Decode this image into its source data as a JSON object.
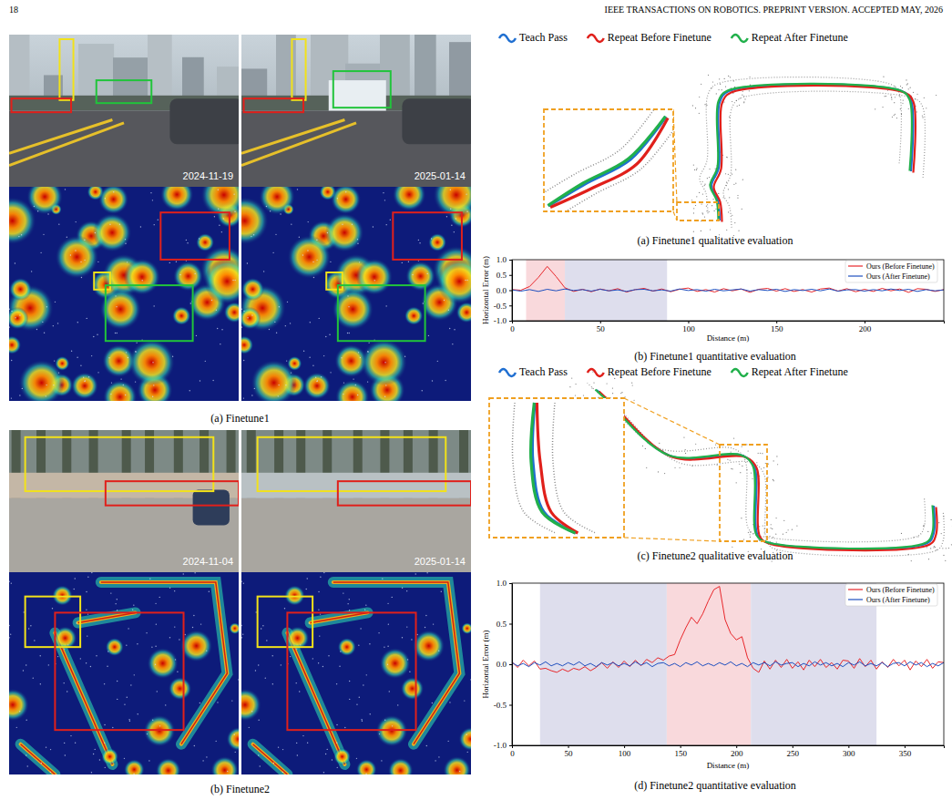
{
  "header": {
    "page_number": "18",
    "journal": "IEEE TRANSACTIONS ON ROBOTICS. PREPRINT VERSION. ACCEPTED MAY, 2026"
  },
  "scene_panels": [
    {
      "caption": "(a) Finetune1",
      "dates": [
        "2024-11-19",
        "2025-01-14"
      ]
    },
    {
      "caption": "(b) Finetune2",
      "dates": [
        "2024-11-04",
        "2025-01-14"
      ]
    }
  ],
  "map_panels": [
    {
      "caption": "(a) Finetune1 qualitative evaluation",
      "legend": [
        {
          "name": "Teach Pass",
          "color": "#1f6fd1"
        },
        {
          "name": "Repeat Before Finetune",
          "color": "#e0201b"
        },
        {
          "name": "Repeat After Finetune",
          "color": "#21b04b"
        }
      ]
    },
    {
      "caption": "(c) Finetune2 qualitative evaluation",
      "legend": [
        {
          "name": "Teach Pass",
          "color": "#1f6fd1"
        },
        {
          "name": "Repeat Before Finetune",
          "color": "#e0201b"
        },
        {
          "name": "Repeat After Finetune",
          "color": "#21b04b"
        }
      ]
    }
  ],
  "chart_data": [
    {
      "type": "line",
      "caption": "(b) Finetune1 quantitative evaluation",
      "x_label": "Distance (m)",
      "y_label": "Horizontal Error (m)",
      "x": [
        0,
        5,
        10,
        15,
        20,
        25,
        30,
        35,
        40,
        45,
        50,
        55,
        60,
        65,
        70,
        75,
        80,
        85,
        90,
        95,
        100,
        105,
        110,
        115,
        120,
        125,
        130,
        135,
        140,
        145,
        150,
        155,
        160,
        165,
        170,
        175,
        180,
        185,
        190,
        195,
        200,
        205,
        210,
        215,
        220,
        225,
        230,
        235,
        240,
        245
      ],
      "series": [
        {
          "name": "Ours (Before Finetune)",
          "color": "#e8262a",
          "values": [
            0.02,
            0.0,
            0.12,
            0.42,
            0.78,
            0.45,
            0.08,
            -0.04,
            0.03,
            -0.05,
            0.04,
            -0.02,
            0.05,
            -0.06,
            0.02,
            0.06,
            -0.03,
            0.04,
            -0.05,
            0.03,
            0.07,
            -0.04,
            0.02,
            -0.06,
            0.05,
            -0.02,
            0.04,
            -0.07,
            0.03,
            0.06,
            -0.03,
            0.05,
            -0.04,
            0.02,
            -0.06,
            0.04,
            0.07,
            -0.03,
            0.05,
            -0.05,
            0.03,
            -0.04,
            0.06,
            -0.02,
            0.04,
            -0.07,
            0.05,
            0.03,
            -0.04,
            0.02
          ]
        },
        {
          "name": "Ours (After Finetune)",
          "color": "#1f4fbf",
          "values": [
            0.01,
            -0.03,
            0.02,
            -0.04,
            0.03,
            -0.02,
            0.04,
            -0.01,
            0.02,
            -0.03,
            0.03,
            -0.02,
            0.01,
            -0.04,
            0.02,
            0.03,
            -0.02,
            0.01,
            -0.03,
            0.04,
            -0.01,
            0.02,
            -0.03,
            0.03,
            -0.02,
            0.01,
            0.04,
            -0.03,
            0.02,
            -0.01,
            0.03,
            -0.04,
            0.02,
            -0.01,
            0.03,
            -0.02,
            0.04,
            -0.03,
            0.01,
            0.02,
            -0.03,
            0.02,
            -0.02,
            0.04,
            -0.01,
            0.03,
            -0.04,
            0.02,
            -0.02,
            0.01
          ]
        }
      ],
      "regions": [
        {
          "start": 8,
          "end": 30,
          "color": "#f9d9dc"
        },
        {
          "start": 30,
          "end": 88,
          "color": "#dedeed"
        }
      ],
      "xlim": [
        0,
        245
      ],
      "xticks": [
        0,
        50,
        100,
        150,
        200
      ],
      "ylim": [
        -1,
        1
      ],
      "yticks": [
        {
          "value": -1,
          "label": "-1.0"
        },
        {
          "value": -0.5,
          "label": "-0.5"
        },
        {
          "value": 0,
          "label": "0.0"
        },
        {
          "value": 0.5,
          "label": "0.5"
        },
        {
          "value": 1,
          "label": "1.0"
        }
      ],
      "legend": "upper right",
      "grid": false
    },
    {
      "type": "line",
      "caption": "(d) Finetune2 quantitative evaluation",
      "x_label": "Distance (m)",
      "y_label": "Horizontal Error (m)",
      "x": [
        0,
        5,
        10,
        15,
        20,
        25,
        30,
        35,
        40,
        45,
        50,
        55,
        60,
        65,
        70,
        75,
        80,
        85,
        90,
        95,
        100,
        105,
        110,
        115,
        120,
        125,
        130,
        135,
        140,
        145,
        150,
        155,
        160,
        165,
        170,
        175,
        180,
        185,
        190,
        195,
        200,
        205,
        210,
        215,
        220,
        225,
        230,
        235,
        240,
        245,
        250,
        255,
        260,
        265,
        270,
        275,
        280,
        285,
        290,
        295,
        300,
        305,
        310,
        315,
        320,
        325,
        330,
        335,
        340,
        345,
        350,
        355,
        360,
        365,
        370,
        375,
        380,
        385
      ],
      "series": [
        {
          "name": "Ours (Before Finetune)",
          "color": "#e8262a",
          "values": [
            0.03,
            -0.04,
            0.05,
            -0.02,
            0.04,
            -0.06,
            -0.05,
            -0.08,
            -0.1,
            -0.06,
            -0.09,
            -0.05,
            -0.07,
            -0.03,
            -0.08,
            -0.04,
            0.02,
            -0.05,
            0.03,
            -0.04,
            0.04,
            -0.03,
            0.05,
            -0.02,
            0.06,
            0.02,
            0.08,
            0.05,
            0.1,
            0.12,
            0.3,
            0.45,
            0.58,
            0.5,
            0.62,
            0.78,
            0.92,
            0.96,
            0.55,
            0.38,
            0.3,
            0.34,
            0.08,
            -0.05,
            -0.1,
            0.04,
            -0.06,
            0.05,
            -0.04,
            0.06,
            -0.05,
            0.03,
            -0.07,
            0.05,
            -0.03,
            0.06,
            -0.04,
            0.02,
            -0.06,
            0.05,
            0.04,
            -0.05,
            0.07,
            -0.03,
            0.05,
            -0.06,
            0.03,
            -0.04,
            0.06,
            -0.02,
            0.05,
            -0.07,
            0.04,
            -0.03,
            0.06,
            -0.05,
            0.03,
            0.02
          ]
        },
        {
          "name": "Ours (After Finetune)",
          "color": "#1f4fbf",
          "values": [
            0.02,
            -0.02,
            0.01,
            -0.03,
            0.02,
            -0.01,
            0.03,
            -0.02,
            0.01,
            -0.02,
            0.02,
            -0.01,
            0.03,
            -0.02,
            0.01,
            -0.03,
            0.02,
            -0.01,
            0.02,
            -0.02,
            0.01,
            -0.02,
            0.03,
            -0.01,
            0.02,
            -0.03,
            0.01,
            0.02,
            -0.02,
            0.01,
            -0.03,
            0.02,
            -0.01,
            0.03,
            -0.02,
            0.01,
            -0.02,
            0.02,
            -0.01,
            0.03,
            -0.02,
            0.01,
            -0.03,
            0.02,
            -0.01,
            0.02,
            -0.02,
            0.03,
            -0.01,
            0.01,
            0.02,
            -0.03,
            0.01,
            -0.02,
            0.03,
            -0.01,
            0.02,
            -0.02,
            0.01,
            -0.03,
            0.02,
            -0.01,
            0.03,
            -0.02,
            0.01,
            -0.02,
            0.02,
            -0.03,
            0.01,
            0.02,
            -0.02,
            0.03,
            -0.01,
            0.02,
            -0.03,
            0.01,
            -0.02,
            0.02
          ]
        }
      ],
      "regions": [
        {
          "start": 25,
          "end": 138,
          "color": "#dedeed"
        },
        {
          "start": 138,
          "end": 213,
          "color": "#f9d9dc"
        },
        {
          "start": 213,
          "end": 325,
          "color": "#dedeed"
        }
      ],
      "xlim": [
        0,
        385
      ],
      "xticks": [
        0,
        50,
        100,
        150,
        200,
        250,
        300,
        350
      ],
      "ylim": [
        -1,
        1
      ],
      "yticks": [
        {
          "value": -1,
          "label": "-1.0"
        },
        {
          "value": -0.5,
          "label": "-0.5"
        },
        {
          "value": 0,
          "label": "0.0"
        },
        {
          "value": 0.5,
          "label": "0.5"
        },
        {
          "value": 1,
          "label": "1.0"
        }
      ],
      "legend": "upper right",
      "grid": false
    }
  ]
}
